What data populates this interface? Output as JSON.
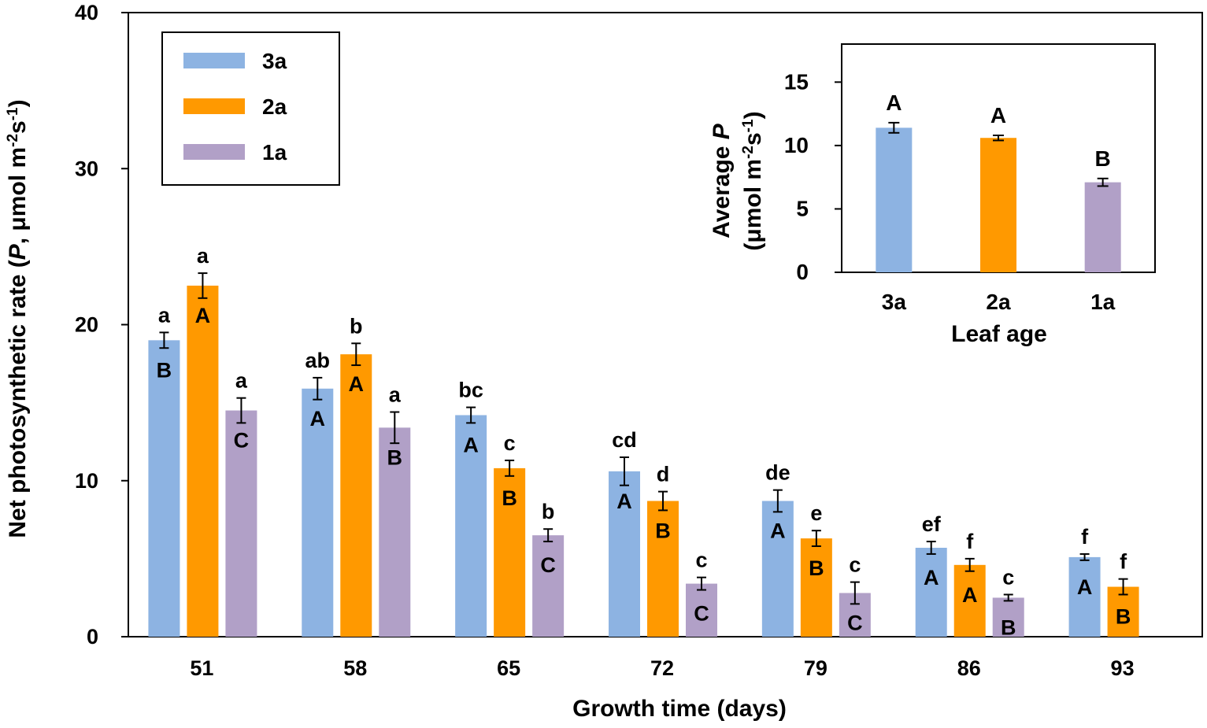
{
  "chart_data": [
    {
      "type": "bar",
      "xlabel": "Growth time (days)",
      "ylabel": "Net photosynthetic rate (P, μmol m-2s-1)",
      "ylabel_parts": {
        "pre": "Net photosynthetic  rate (",
        "var": "P",
        "mid": ", μmol m",
        "sup1": "-2",
        "s": "s",
        "sup2": "-1",
        "post": ")"
      },
      "ylim": [
        0,
        40
      ],
      "yticks": [
        "0",
        "10",
        "20",
        "30",
        "40"
      ],
      "categories": [
        "51",
        "58",
        "65",
        "72",
        "79",
        "86",
        "93"
      ],
      "legend_position": "top-left",
      "series": [
        {
          "name": "3a",
          "color": "#8DB3E2",
          "values": [
            19.0,
            15.9,
            14.2,
            10.6,
            8.7,
            5.7,
            5.1
          ],
          "errors": [
            0.5,
            0.7,
            0.5,
            0.9,
            0.7,
            0.4,
            0.2
          ],
          "lower_letters": [
            "a",
            "ab",
            "bc",
            "cd",
            "de",
            "ef",
            "f"
          ],
          "upper_letters": [
            "B",
            "A",
            "A",
            "A",
            "A",
            "A",
            "A"
          ]
        },
        {
          "name": "2a",
          "color": "#FF9900",
          "values": [
            22.5,
            18.1,
            10.8,
            8.7,
            6.3,
            4.6,
            3.2
          ],
          "errors": [
            0.8,
            0.7,
            0.5,
            0.6,
            0.5,
            0.4,
            0.5
          ],
          "lower_letters": [
            "a",
            "b",
            "c",
            "d",
            "e",
            "f",
            "f"
          ],
          "upper_letters": [
            "A",
            "A",
            "B",
            "B",
            "B",
            "A",
            "B"
          ]
        },
        {
          "name": "1a",
          "color": "#B1A0C7",
          "values": [
            14.5,
            13.4,
            6.5,
            3.4,
            2.8,
            2.5,
            null
          ],
          "errors": [
            0.8,
            1.0,
            0.4,
            0.4,
            0.7,
            0.2,
            null
          ],
          "lower_letters": [
            "a",
            "a",
            "b",
            "c",
            "c",
            "c",
            ""
          ],
          "upper_letters": [
            "C",
            "B",
            "C",
            "C",
            "C",
            "B",
            ""
          ]
        }
      ]
    },
    {
      "type": "bar",
      "xlabel": "Leaf age",
      "ylabel_line1": {
        "pre": "Average ",
        "var": "P"
      },
      "ylabel_line2": {
        "pre": "(μmol m",
        "sup1": "-2",
        "s": "s",
        "sup2": "-1",
        "post": ")"
      },
      "ylim": [
        0,
        18
      ],
      "yticks": [
        "0",
        "5",
        "10",
        "15"
      ],
      "categories": [
        "3a",
        "2a",
        "1a"
      ],
      "values": [
        11.4,
        10.6,
        7.1
      ],
      "errors": [
        0.4,
        0.2,
        0.3
      ],
      "colors": [
        "#8DB3E2",
        "#FF9900",
        "#B1A0C7"
      ],
      "letters": [
        "A",
        "A",
        "B"
      ]
    }
  ]
}
